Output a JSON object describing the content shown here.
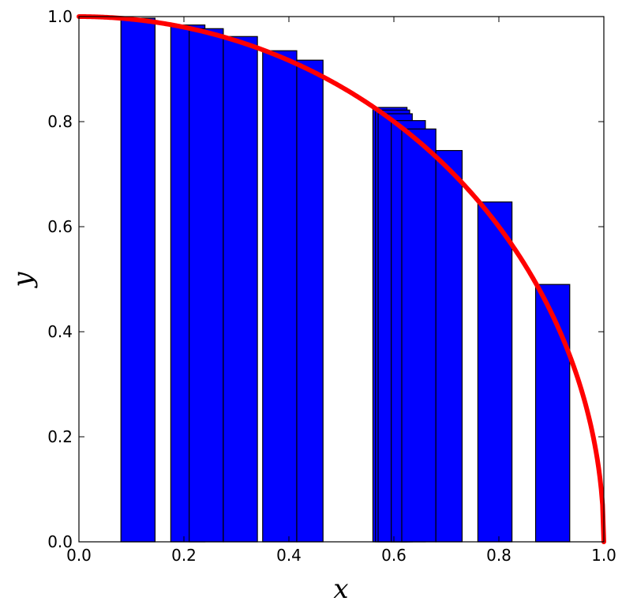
{
  "chart_data": {
    "type": "bar",
    "title": "",
    "xlabel": "x",
    "ylabel": "y",
    "xlim": [
      0.0,
      1.0
    ],
    "ylim": [
      0.0,
      1.0
    ],
    "x_ticks": [
      "0.0",
      "0.2",
      "0.4",
      "0.6",
      "0.8",
      "1.0"
    ],
    "y_ticks": [
      "0.0",
      "0.2",
      "0.4",
      "0.6",
      "0.8",
      "1.0"
    ],
    "grid": false,
    "legend": "none",
    "bar_color": "#0000ff",
    "bar_edge_color": "#000000",
    "curve_color": "#ff0000",
    "bars": [
      {
        "x_start": 0.08,
        "x_end": 0.145,
        "height": 0.997
      },
      {
        "x_start": 0.175,
        "x_end": 0.24,
        "height": 0.984
      },
      {
        "x_start": 0.21,
        "x_end": 0.275,
        "height": 0.977
      },
      {
        "x_start": 0.275,
        "x_end": 0.34,
        "height": 0.962
      },
      {
        "x_start": 0.35,
        "x_end": 0.415,
        "height": 0.935
      },
      {
        "x_start": 0.415,
        "x_end": 0.465,
        "height": 0.917
      },
      {
        "x_start": 0.56,
        "x_end": 0.625,
        "height": 0.827
      },
      {
        "x_start": 0.565,
        "x_end": 0.63,
        "height": 0.822
      },
      {
        "x_start": 0.57,
        "x_end": 0.635,
        "height": 0.815
      },
      {
        "x_start": 0.595,
        "x_end": 0.66,
        "height": 0.802
      },
      {
        "x_start": 0.615,
        "x_end": 0.68,
        "height": 0.786
      },
      {
        "x_start": 0.68,
        "x_end": 0.73,
        "height": 0.745
      },
      {
        "x_start": 0.76,
        "x_end": 0.825,
        "height": 0.647
      },
      {
        "x_start": 0.87,
        "x_end": 0.935,
        "height": 0.49
      }
    ],
    "curve": {
      "name": "",
      "equation": "y = sqrt(1 - x^2)",
      "x_range": [
        0.0,
        1.0
      ]
    }
  }
}
